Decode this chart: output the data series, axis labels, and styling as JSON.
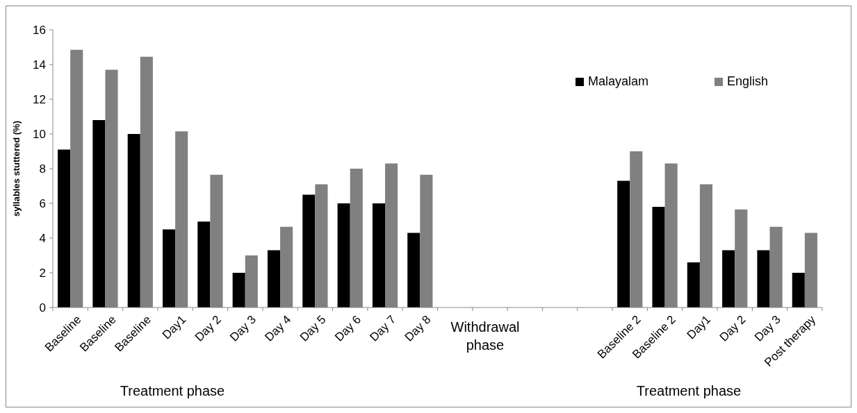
{
  "chart_data": {
    "type": "bar",
    "ylabel": "syllables stuttered (%)",
    "categories": [
      "Baseline",
      "Baseline",
      "Baseline",
      "Day1",
      "Day 2",
      "Day 3",
      "Day 4",
      "Day 5",
      "Day 6",
      "Day 7",
      "Day 8",
      null,
      null,
      null,
      null,
      null,
      "Baseline 2",
      "Baseline 2",
      "Day1",
      "Day 2",
      "Day 3",
      "Post therapy"
    ],
    "series": [
      {
        "name": "Malayalam",
        "color": "#000000",
        "values": [
          9.1,
          10.8,
          10.0,
          4.5,
          4.95,
          2.0,
          3.3,
          6.5,
          6.0,
          6.0,
          4.3,
          null,
          null,
          null,
          null,
          null,
          7.3,
          5.8,
          2.6,
          3.3,
          3.3,
          2.0
        ]
      },
      {
        "name": "English",
        "color": "#808080",
        "values": [
          14.85,
          13.7,
          14.45,
          10.15,
          7.65,
          3.0,
          4.65,
          7.1,
          8.0,
          8.3,
          7.65,
          null,
          null,
          null,
          null,
          null,
          9.0,
          8.3,
          7.1,
          5.65,
          4.65,
          4.3
        ]
      }
    ],
    "ylim": [
      0,
      16
    ],
    "yticks": [
      0,
      2,
      4,
      6,
      8,
      10,
      12,
      14,
      16
    ],
    "grid": false,
    "legend": "top right",
    "annotations": [
      "Treatment phase",
      "Withdrawal phase",
      "Treatment phase"
    ]
  }
}
